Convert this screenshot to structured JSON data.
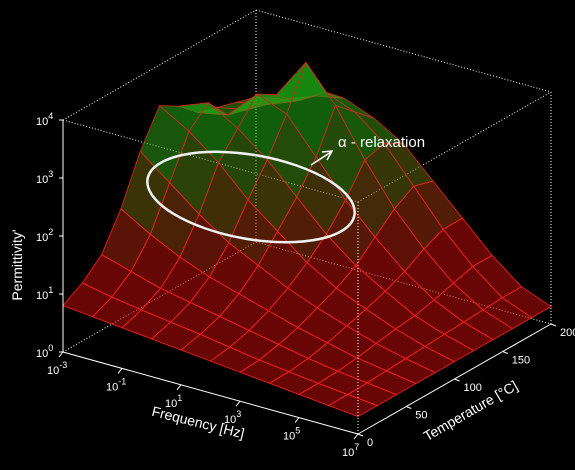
{
  "chart_data": {
    "type": "surface3d",
    "title": "",
    "zlabel": "Permittivity'",
    "xlabel": "Frequency [Hz]",
    "ylabel": "Temperature [°C]",
    "z_scale": "log",
    "x_scale": "log",
    "zlim": [
      1,
      10000
    ],
    "xlim": [
      0.001,
      10000000
    ],
    "ylim": [
      0,
      200
    ],
    "z_ticks": [
      {
        "base": "10",
        "exp": "0"
      },
      {
        "base": "10",
        "exp": "1"
      },
      {
        "base": "10",
        "exp": "2"
      },
      {
        "base": "10",
        "exp": "3"
      },
      {
        "base": "10",
        "exp": "4"
      }
    ],
    "x_ticks": [
      {
        "base": "10",
        "exp": "-3"
      },
      {
        "base": "10",
        "exp": "-1"
      },
      {
        "base": "10",
        "exp": "1"
      },
      {
        "base": "10",
        "exp": "3"
      },
      {
        "base": "10",
        "exp": "5"
      },
      {
        "base": "10",
        "exp": "7"
      }
    ],
    "y_ticks": [
      "0",
      "50",
      "100",
      "150",
      "200"
    ],
    "annotation": "α - relaxation",
    "colors": {
      "surface_high": "#22cc22",
      "surface_low": "#ff2020",
      "box": "#ffffff",
      "background": "#000000"
    },
    "surface": {
      "log_frequency": [
        -3,
        -2,
        -1,
        0,
        1,
        2,
        3,
        4,
        5,
        6,
        7
      ],
      "temperature": [
        0,
        20,
        40,
        60,
        80,
        100,
        120,
        140,
        160,
        180,
        200
      ],
      "log_permittivity_rows_by_temperature": [
        [
          0.8,
          0.75,
          0.7,
          0.65,
          0.6,
          0.55,
          0.5,
          0.45,
          0.4,
          0.35,
          0.3
        ],
        [
          1.0,
          0.9,
          0.82,
          0.75,
          0.68,
          0.6,
          0.52,
          0.46,
          0.4,
          0.35,
          0.3
        ],
        [
          1.3,
          1.15,
          1.0,
          0.9,
          0.8,
          0.7,
          0.6,
          0.5,
          0.42,
          0.36,
          0.3
        ],
        [
          1.9,
          1.6,
          1.35,
          1.15,
          1.0,
          0.85,
          0.7,
          0.58,
          0.46,
          0.38,
          0.3
        ],
        [
          2.7,
          2.3,
          1.9,
          1.55,
          1.3,
          1.05,
          0.85,
          0.68,
          0.52,
          0.4,
          0.3
        ],
        [
          3.3,
          3.0,
          2.6,
          2.1,
          1.7,
          1.3,
          1.0,
          0.78,
          0.58,
          0.42,
          0.3
        ],
        [
          3.1,
          3.3,
          3.0,
          2.6,
          2.1,
          1.6,
          1.2,
          0.9,
          0.62,
          0.44,
          0.3
        ],
        [
          2.8,
          2.9,
          3.4,
          3.2,
          2.6,
          2.0,
          1.5,
          1.05,
          0.7,
          0.46,
          0.3
        ],
        [
          2.7,
          2.8,
          3.2,
          3.9,
          3.3,
          2.5,
          1.8,
          1.25,
          0.8,
          0.48,
          0.3
        ],
        [
          2.6,
          2.7,
          2.9,
          3.2,
          3.0,
          2.6,
          2.0,
          1.4,
          0.9,
          0.5,
          0.3
        ],
        [
          2.5,
          2.6,
          2.8,
          2.9,
          2.7,
          2.4,
          1.9,
          1.4,
          0.9,
          0.5,
          0.3
        ]
      ]
    }
  }
}
